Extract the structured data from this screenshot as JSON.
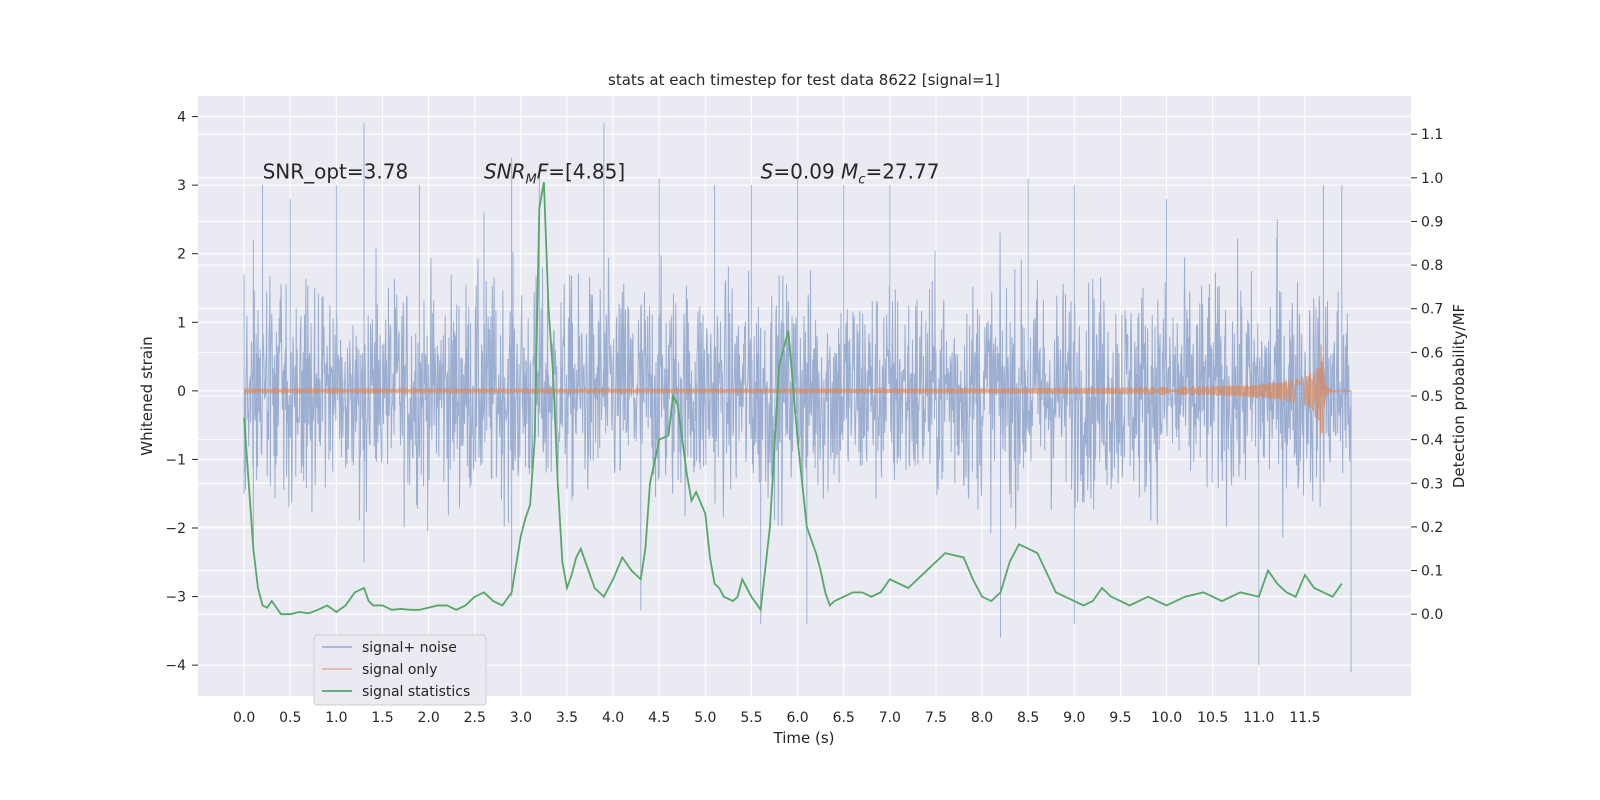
{
  "chart_data": {
    "type": "line",
    "title": "stats at each timestep for test data 8622 [signal=1]",
    "xlabel": "Time (s)",
    "ylabel_left": "Whitened strain",
    "ylabel_right": "Detection probability/MF",
    "xlim": [
      -0.5,
      12.65
    ],
    "ylim_left": [
      -4.45,
      4.3
    ],
    "ylim_right": [
      -0.1875,
      1.1875
    ],
    "xticks": [
      "0.0",
      "0.5",
      "1.0",
      "1.5",
      "2.0",
      "2.5",
      "3.0",
      "3.5",
      "4.0",
      "4.5",
      "5.0",
      "5.5",
      "6.0",
      "6.5",
      "7.0",
      "7.5",
      "8.0",
      "8.5",
      "9.0",
      "9.5",
      "10.0",
      "10.5",
      "11.0",
      "11.5"
    ],
    "yticks_left": [
      "4",
      "3",
      "2",
      "1",
      "0",
      "−1",
      "−2",
      "−3",
      "−4"
    ],
    "yticks_right": [
      "1.1",
      "1.0",
      "0.9",
      "0.8",
      "0.7",
      "0.6",
      "0.5",
      "0.4",
      "0.3",
      "0.2",
      "0.1",
      "0.0"
    ],
    "grid": true,
    "legend_position": "lower-left",
    "annotations": [
      {
        "label": "SNR_opt=3.78",
        "x": 0.2,
        "y": 3.1
      },
      {
        "label": "SNR_MF=[4.85]",
        "x": 2.6,
        "y": 3.1
      },
      {
        "label": "S=0.09   M_c=27.77",
        "x": 5.6,
        "y": 3.1
      }
    ],
    "series": [
      {
        "name": "signal+ noise",
        "color": "#4c72b0",
        "kind": "noise",
        "x_range": [
          0.0,
          12.0
        ],
        "peaks": [
          [
            0.0,
            1.7
          ],
          [
            0.1,
            2.2
          ],
          [
            0.2,
            3.0
          ],
          [
            0.5,
            2.8
          ],
          [
            1.0,
            3.0
          ],
          [
            1.3,
            3.9
          ],
          [
            1.9,
            3.0
          ],
          [
            2.6,
            2.6
          ],
          [
            2.9,
            3.4
          ],
          [
            3.2,
            3.3
          ],
          [
            3.9,
            3.9
          ],
          [
            4.5,
            3.1
          ],
          [
            5.1,
            3.0
          ],
          [
            5.5,
            3.0
          ],
          [
            6.0,
            3.1
          ],
          [
            6.5,
            3.0
          ],
          [
            7.0,
            3.0
          ],
          [
            8.5,
            3.1
          ],
          [
            9.0,
            3.0
          ],
          [
            10.0,
            2.8
          ],
          [
            11.2,
            2.5
          ],
          [
            11.7,
            3.0
          ],
          [
            11.9,
            3.0
          ]
        ],
        "troughs": [
          [
            0.0,
            -1.5
          ],
          [
            0.1,
            -2.2
          ],
          [
            1.3,
            -2.5
          ],
          [
            2.9,
            -3.0
          ],
          [
            4.3,
            -3.2
          ],
          [
            5.6,
            -3.4
          ],
          [
            6.1,
            -3.4
          ],
          [
            8.2,
            -3.6
          ],
          [
            9.0,
            -3.4
          ],
          [
            11.0,
            -4.0
          ],
          [
            12.0,
            -4.1
          ]
        ]
      },
      {
        "name": "signal only",
        "color": "#dd8452",
        "kind": "chirp",
        "t_merge": 11.68,
        "peak_amplitude": 0.85
      },
      {
        "name": "signal statistics",
        "color": "#55a868",
        "axis": "right",
        "x": [
          0.0,
          0.05,
          0.1,
          0.15,
          0.2,
          0.25,
          0.3,
          0.4,
          0.5,
          0.6,
          0.7,
          0.8,
          0.9,
          1.0,
          1.1,
          1.2,
          1.3,
          1.35,
          1.4,
          1.5,
          1.6,
          1.7,
          1.8,
          1.9,
          2.0,
          2.1,
          2.2,
          2.3,
          2.4,
          2.5,
          2.6,
          2.7,
          2.8,
          2.9,
          3.0,
          3.05,
          3.1,
          3.15,
          3.2,
          3.25,
          3.3,
          3.35,
          3.4,
          3.45,
          3.5,
          3.55,
          3.6,
          3.65,
          3.7,
          3.8,
          3.9,
          4.0,
          4.1,
          4.2,
          4.3,
          4.35,
          4.4,
          4.5,
          4.6,
          4.65,
          4.7,
          4.8,
          4.85,
          4.9,
          5.0,
          5.05,
          5.1,
          5.15,
          5.2,
          5.3,
          5.35,
          5.4,
          5.5,
          5.6,
          5.7,
          5.8,
          5.9,
          6.0,
          6.1,
          6.2,
          6.25,
          6.3,
          6.35,
          6.4,
          6.5,
          6.6,
          6.7,
          6.8,
          6.9,
          7.0,
          7.2,
          7.4,
          7.6,
          7.8,
          7.9,
          8.0,
          8.1,
          8.2,
          8.3,
          8.4,
          8.6,
          8.8,
          9.0,
          9.1,
          9.2,
          9.3,
          9.4,
          9.5,
          9.6,
          9.8,
          10.0,
          10.2,
          10.4,
          10.6,
          10.8,
          11.0,
          11.1,
          11.2,
          11.3,
          11.4,
          11.5,
          11.6,
          11.7,
          11.8,
          11.9
        ],
        "y": [
          0.45,
          0.3,
          0.15,
          0.06,
          0.02,
          0.015,
          0.03,
          0.0,
          0.0,
          0.005,
          0.002,
          0.01,
          0.02,
          0.005,
          0.02,
          0.05,
          0.06,
          0.03,
          0.02,
          0.02,
          0.01,
          0.012,
          0.01,
          0.01,
          0.015,
          0.02,
          0.02,
          0.01,
          0.02,
          0.04,
          0.05,
          0.03,
          0.02,
          0.05,
          0.18,
          0.22,
          0.25,
          0.4,
          0.93,
          0.99,
          0.7,
          0.55,
          0.3,
          0.12,
          0.06,
          0.09,
          0.13,
          0.15,
          0.12,
          0.06,
          0.04,
          0.08,
          0.13,
          0.1,
          0.08,
          0.15,
          0.3,
          0.4,
          0.41,
          0.5,
          0.48,
          0.32,
          0.26,
          0.28,
          0.23,
          0.13,
          0.07,
          0.06,
          0.04,
          0.03,
          0.04,
          0.08,
          0.04,
          0.01,
          0.2,
          0.57,
          0.65,
          0.4,
          0.2,
          0.14,
          0.1,
          0.05,
          0.02,
          0.03,
          0.04,
          0.05,
          0.05,
          0.04,
          0.05,
          0.08,
          0.06,
          0.1,
          0.14,
          0.13,
          0.08,
          0.04,
          0.03,
          0.05,
          0.12,
          0.16,
          0.14,
          0.05,
          0.03,
          0.02,
          0.03,
          0.06,
          0.04,
          0.03,
          0.02,
          0.04,
          0.02,
          0.04,
          0.05,
          0.03,
          0.05,
          0.04,
          0.1,
          0.07,
          0.05,
          0.04,
          0.09,
          0.06,
          0.05,
          0.04,
          0.07
        ]
      }
    ]
  }
}
